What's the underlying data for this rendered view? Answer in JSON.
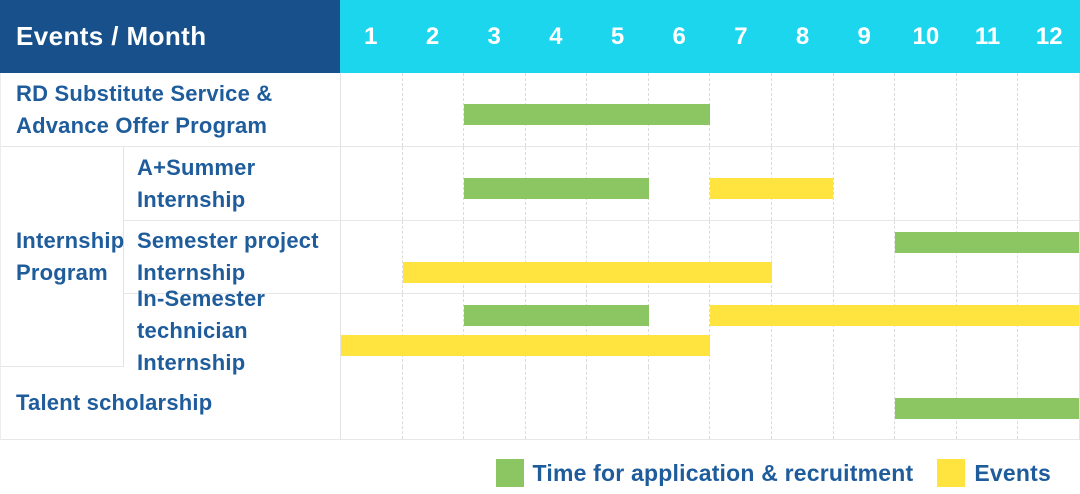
{
  "header": {
    "title": "Events / Month"
  },
  "legend": {
    "application_label": "Time for application & recruitment",
    "events_label": "Events"
  },
  "colors": {
    "header_navy": "#17508A",
    "header_cyan": "#1CD6EE",
    "application_green": "#8CC663",
    "events_yellow": "#FFE33F",
    "text_blue": "#1E5C9B",
    "grid_line": "#E7E7E7"
  },
  "chart_data": {
    "type": "gantt",
    "x_unit": "month",
    "x_range": [
      1,
      12
    ],
    "grid": true,
    "legend_position": "bottom-right",
    "months": [
      "1",
      "2",
      "3",
      "4",
      "5",
      "6",
      "7",
      "8",
      "9",
      "10",
      "11",
      "12"
    ],
    "group_label": "Internship\nProgram",
    "series_legend": [
      {
        "name": "Time for application & recruitment",
        "color": "#8CC663"
      },
      {
        "name": "Events",
        "color": "#FFE33F"
      }
    ],
    "rows": [
      {
        "label": "RD Substitute Service &\nAdvance Offer Program",
        "group": "",
        "bars": [
          {
            "kind": "application",
            "start_month": 3,
            "end_month": 6,
            "lane": "mid"
          }
        ]
      },
      {
        "label": "A+Summer\nInternship",
        "group": "Internship Program",
        "bars": [
          {
            "kind": "application",
            "start_month": 3,
            "end_month": 5,
            "lane": "mid"
          },
          {
            "kind": "events",
            "start_month": 7,
            "end_month": 8,
            "lane": "mid"
          }
        ]
      },
      {
        "label": "Semester project\nInternship",
        "group": "Internship Program",
        "bars": [
          {
            "kind": "application",
            "start_month": 10,
            "end_month": 12,
            "lane": "top"
          },
          {
            "kind": "events",
            "start_month": 2,
            "end_month": 7,
            "lane": "bottom"
          }
        ]
      },
      {
        "label": "In-Semester\ntechnician Internship",
        "group": "Internship Program",
        "bars": [
          {
            "kind": "application",
            "start_month": 3,
            "end_month": 5,
            "lane": "top"
          },
          {
            "kind": "events",
            "start_month": 7,
            "end_month": 12,
            "lane": "top"
          },
          {
            "kind": "events",
            "start_month": 1,
            "end_month": 6,
            "lane": "bottom"
          }
        ]
      },
      {
        "label": "Talent scholarship",
        "group": "",
        "bars": [
          {
            "kind": "application",
            "start_month": 10,
            "end_month": 12,
            "lane": "mid"
          }
        ]
      }
    ]
  }
}
